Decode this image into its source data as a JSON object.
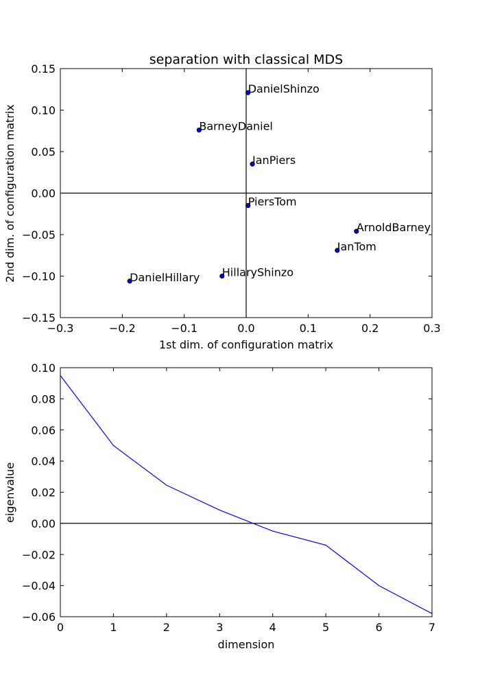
{
  "chart_data": [
    {
      "type": "scatter",
      "title": "separation with classical MDS",
      "xlabel": "1st dim. of configuration matrix",
      "ylabel": "2nd dim. of configuration matrix",
      "xlim": [
        -0.3,
        0.3
      ],
      "ylim": [
        -0.15,
        0.15
      ],
      "xticks": [
        -0.3,
        -0.2,
        -0.1,
        0.0,
        0.1,
        0.2,
        0.3
      ],
      "xtick_labels": [
        "−0.3",
        "−0.2",
        "−0.1",
        "0.0",
        "0.1",
        "0.2",
        "0.3"
      ],
      "yticks": [
        -0.15,
        -0.1,
        -0.05,
        0.0,
        0.05,
        0.1,
        0.15
      ],
      "ytick_labels": [
        "−0.15",
        "−0.10",
        "−0.05",
        "0.00",
        "0.05",
        "0.10",
        "0.15"
      ],
      "reference_lines": {
        "x": 0,
        "y": 0
      },
      "grid": false,
      "marker_color": "#0000ff",
      "points": [
        {
          "label": "DanielShinzo",
          "x": 0.003,
          "y": 0.121
        },
        {
          "label": "BarneyDaniel",
          "x": -0.076,
          "y": 0.076
        },
        {
          "label": "JanPiers",
          "x": 0.01,
          "y": 0.035
        },
        {
          "label": "PiersTom",
          "x": 0.003,
          "y": -0.015
        },
        {
          "label": "ArnoldBarney",
          "x": 0.178,
          "y": -0.046
        },
        {
          "label": "JanTom",
          "x": 0.147,
          "y": -0.069
        },
        {
          "label": "HillaryShinzo",
          "x": -0.039,
          "y": -0.1
        },
        {
          "label": "DanielHillary",
          "x": -0.188,
          "y": -0.106
        }
      ]
    },
    {
      "type": "line",
      "title": "",
      "xlabel": "dimension",
      "ylabel": "eigenvalue",
      "xlim": [
        0,
        7
      ],
      "ylim": [
        -0.06,
        0.1
      ],
      "xticks": [
        0,
        1,
        2,
        3,
        4,
        5,
        6,
        7
      ],
      "xtick_labels": [
        "0",
        "1",
        "2",
        "3",
        "4",
        "5",
        "6",
        "7"
      ],
      "yticks": [
        -0.06,
        -0.04,
        -0.02,
        0.0,
        0.02,
        0.04,
        0.06,
        0.08,
        0.1
      ],
      "ytick_labels": [
        "−0.06",
        "−0.04",
        "−0.02",
        "0.00",
        "0.02",
        "0.04",
        "0.06",
        "0.08",
        "0.10"
      ],
      "reference_lines": {
        "y": 0
      },
      "grid": false,
      "line_color": "#0000ff",
      "x": [
        0,
        1,
        2,
        3,
        4,
        5,
        6,
        7
      ],
      "values": [
        0.095,
        0.05,
        0.0245,
        0.0085,
        -0.005,
        -0.014,
        -0.04,
        -0.058
      ]
    }
  ]
}
